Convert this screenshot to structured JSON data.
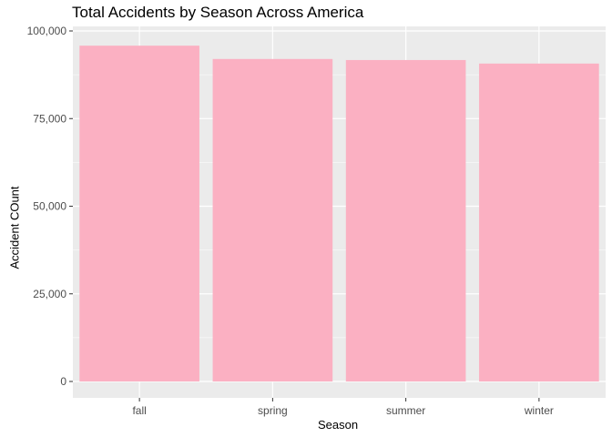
{
  "chart_data": {
    "type": "bar",
    "title": "Total Accidents by Season Across America",
    "xlabel": "Season",
    "ylabel": "Accident COunt",
    "categories": [
      "fall",
      "spring",
      "summer",
      "winter"
    ],
    "values": [
      95800,
      92000,
      91700,
      90700
    ],
    "ylim": [
      0,
      100000
    ],
    "yticks": [
      0,
      25000,
      50000,
      75000,
      100000
    ],
    "ytick_labels": [
      "0",
      "25,000",
      "50,000",
      "75,000",
      "100,000"
    ],
    "grid": true,
    "legend": "none",
    "colors": {
      "bar": "#FBB0C2",
      "panel": "#EBEBEB",
      "grid": "#FFFFFF"
    }
  }
}
